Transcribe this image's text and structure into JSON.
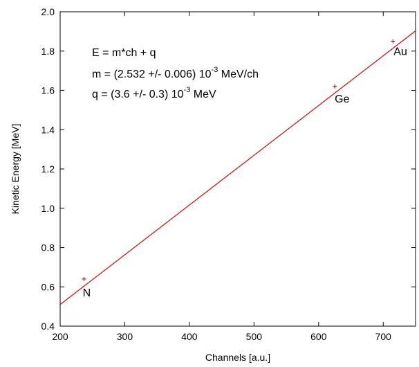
{
  "chart_data": {
    "type": "scatter",
    "xlabel": "Channels [a.u.]",
    "ylabel": "Kinetic Energy [MeV]",
    "xlim": [
      200,
      750
    ],
    "ylim": [
      0.4,
      2.0
    ],
    "x_ticks": [
      200,
      300,
      400,
      500,
      600,
      700
    ],
    "x_tick_labels": [
      "200",
      "300",
      "400",
      "500",
      "600",
      "700"
    ],
    "y_ticks": [
      0.4,
      0.6,
      0.8,
      1.0,
      1.2,
      1.4,
      1.6,
      1.8,
      2.0
    ],
    "y_tick_labels": [
      "0.4",
      "0.6",
      "0.8",
      "1.0",
      "1.2",
      "1.4",
      "1.6",
      "1.8",
      "2.0"
    ],
    "grid": false,
    "points": [
      {
        "label": "N",
        "x": 237,
        "y": 0.64
      },
      {
        "label": "Ge",
        "x": 625,
        "y": 1.62
      },
      {
        "label": "Au",
        "x": 715,
        "y": 1.85
      }
    ],
    "fit": {
      "slope": 0.002532,
      "intercept": 0.0036,
      "color": "#e00000"
    },
    "annotations": [
      {
        "text": "E = m*ch + q"
      },
      {
        "main": "m = (2.532 +/- 0.006) 10",
        "sup": "-3",
        "tail": " MeV/ch"
      },
      {
        "main": "q = (3.6 +/- 0.3) 10",
        "sup": "-3",
        "tail": " MeV"
      }
    ],
    "colors": {
      "fit_line": "#e00000",
      "points": "#8b0000",
      "axes": "#000000"
    }
  }
}
